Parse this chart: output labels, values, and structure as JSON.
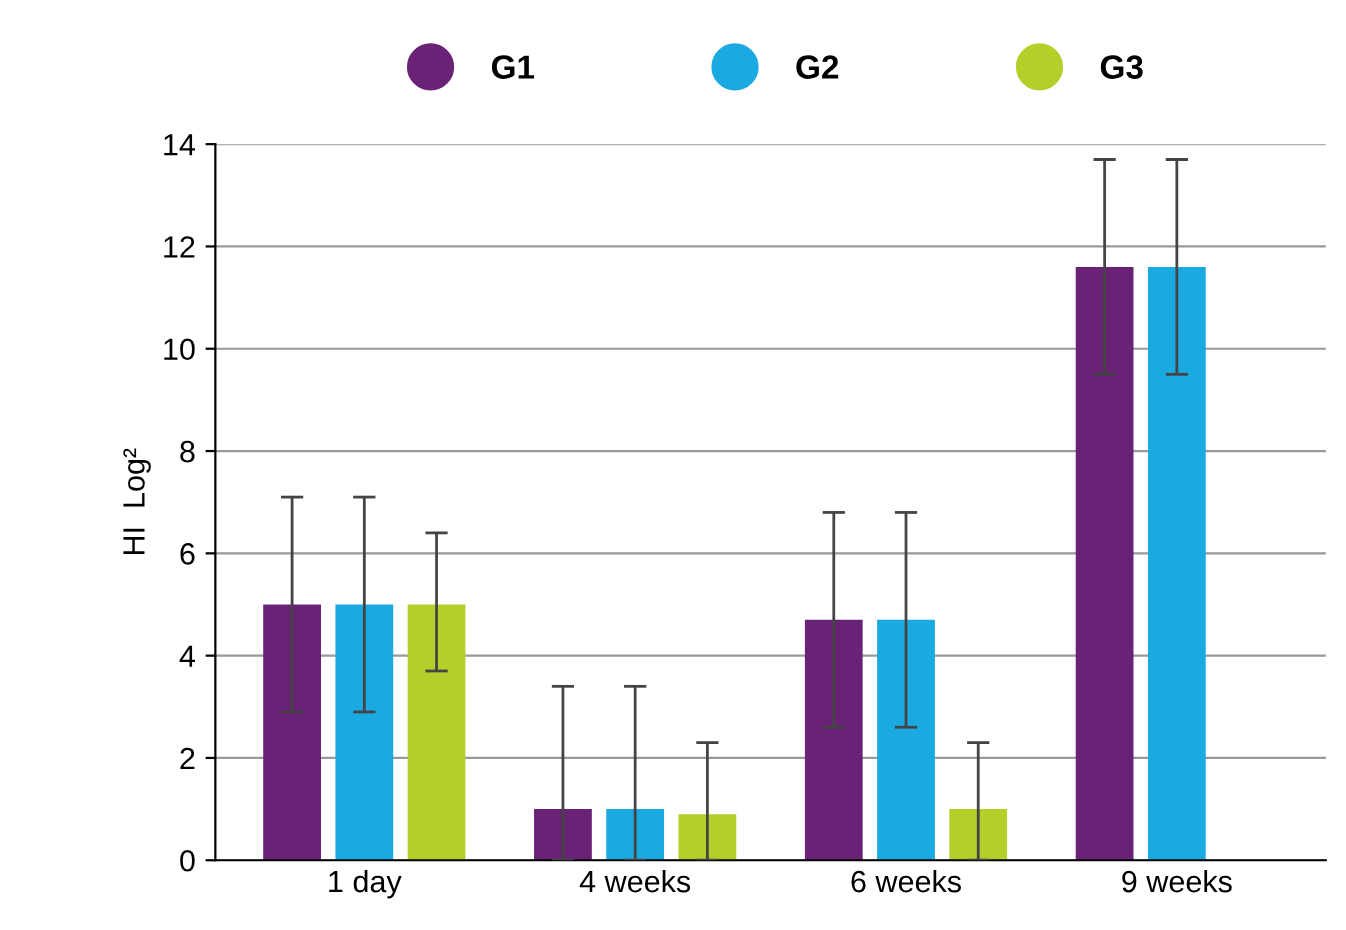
{
  "chart_data": {
    "type": "bar",
    "ylabel": "HI  Log²",
    "categories": [
      "1 day",
      "4 weeks",
      "6 weeks",
      "9 weeks"
    ],
    "series": [
      {
        "name": "G1",
        "color": "#6a2277",
        "values": [
          5.0,
          1.0,
          4.7,
          11.6
        ],
        "errors": [
          2.1,
          [
            0,
            3.4
          ],
          2.1,
          2.1
        ]
      },
      {
        "name": "G2",
        "color": "#1aa9e0",
        "values": [
          5.0,
          1.0,
          4.7,
          11.6
        ],
        "errors": [
          2.1,
          [
            0,
            3.4
          ],
          2.1,
          2.1
        ]
      },
      {
        "name": "G3",
        "color": "#b5cf2a",
        "values": [
          5.0,
          0.9,
          1.0,
          null
        ],
        "errors": [
          [
            3.7,
            6.4
          ],
          [
            0,
            2.3
          ],
          [
            0,
            2.3
          ],
          null
        ]
      }
    ],
    "ylim": [
      0,
      14
    ],
    "yticks": [
      0,
      2,
      4,
      6,
      8,
      10,
      12,
      14
    ],
    "grid": "y",
    "legend": "top"
  }
}
